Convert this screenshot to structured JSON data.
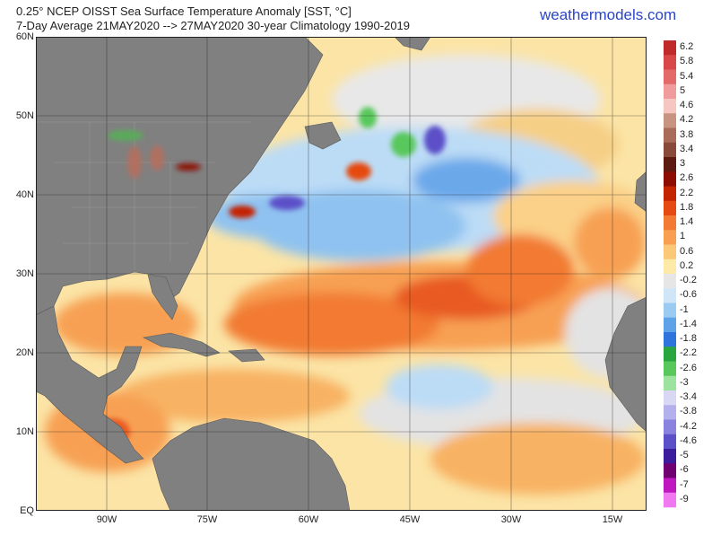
{
  "header": {
    "title": "0.25° NCEP OISST Sea Surface Temperature Anomaly [SST, °C]",
    "subtitle": "7-Day Average 21MAY2020 --> 27MAY2020   30-year Climatology 1990-2019",
    "brand": "weathermodels.com"
  },
  "map": {
    "lat_labels": [
      "60N",
      "50N",
      "40N",
      "30N",
      "20N",
      "10N",
      "EQ"
    ],
    "lon_labels": [
      "90W",
      "75W",
      "60W",
      "45W",
      "30W",
      "15W"
    ],
    "land_color": "#808080",
    "no_anomaly_color": "#d9d9d9"
  },
  "colorbar": {
    "labels": [
      "6.2",
      "5.8",
      "5.4",
      "5",
      "4.6",
      "4.2",
      "3.8",
      "3.4",
      "3",
      "2.6",
      "2.2",
      "1.8",
      "1.4",
      "1",
      "0.6",
      "0.2",
      "-0.2",
      "-0.6",
      "-1",
      "-1.4",
      "-1.8",
      "-2.2",
      "-2.6",
      "-3",
      "-3.4",
      "-3.8",
      "-4.2",
      "-4.6",
      "-5",
      "-6",
      "-7",
      "-9"
    ],
    "colors": [
      "#c02a2a",
      "#d84848",
      "#e46a6a",
      "#f09c9c",
      "#f6c6c0",
      "#c89482",
      "#a86c58",
      "#8a4a3a",
      "#5c1a10",
      "#8c0c00",
      "#c42400",
      "#e64a10",
      "#f37a32",
      "#f8a050",
      "#fbc878",
      "#fde9a8",
      "#e6e6e6",
      "#cfe6f8",
      "#9ccbf2",
      "#5ea2e8",
      "#2e74dc",
      "#2aa640",
      "#58c85c",
      "#9ee2a0",
      "#d8d8f4",
      "#b4b0ec",
      "#8a82de",
      "#5c50c8",
      "#3a1c9c",
      "#700070",
      "#c018c0",
      "#f078f0"
    ]
  }
}
